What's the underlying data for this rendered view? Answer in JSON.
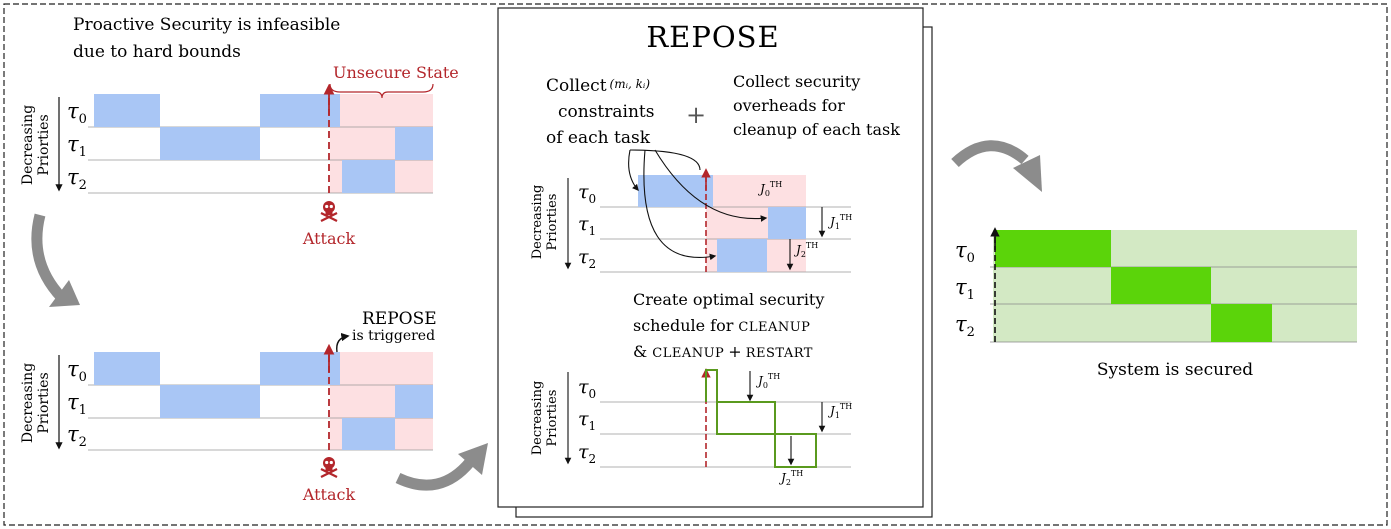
{
  "colors": {
    "task_block": "#a9c6f5",
    "unsecure_bg": "#fde0e2",
    "attack": "#b3262b",
    "schedule_line": "#5a9a1e",
    "secured_bg": "#d3e9c4",
    "secured_block": "#5bd40a",
    "arrow_gray": "#8c8c8c"
  },
  "icons": {
    "attack": "skull-crossbones-icon"
  },
  "tasks": {
    "t0": "τ",
    "t1": "τ",
    "t2": "τ",
    "s0": "0",
    "s1": "1",
    "s2": "2"
  },
  "axis_label_line1": "Decreasing",
  "axis_label_line2": "Priorties",
  "top_left": {
    "caption_line1": "Proactive Security is infeasible",
    "caption_line2": "due to hard bounds",
    "unsecure_label": "Unsecure State",
    "attack_label": "Attack"
  },
  "bottom_left": {
    "repose_label": "REPOSE",
    "triggered_label": "is triggered",
    "attack_label": "Attack"
  },
  "center": {
    "title": "REPOSE",
    "collect_line1": "Collect",
    "collect_param": "(mᵢ, kᵢ)",
    "collect_line2": "constraints",
    "collect_line3": "of each task",
    "plus": "+",
    "overhead_line1": "Collect security",
    "overhead_line2": "overheads for",
    "overhead_line3": "cleanup of each task",
    "schedule_line1": "Create optimal security",
    "schedule_line2_prefix": "schedule for",
    "schedule_line2_sc": "CLEANUP",
    "schedule_line3_prefix": "&",
    "schedule_line3_sc1": "CLEANUP",
    "schedule_line3_plus": "+",
    "schedule_line3_sc2": "RESTART",
    "j0": "J",
    "j1": "J",
    "j2": "J",
    "j_sub0": "0",
    "j_sub1": "1",
    "j_sub2": "2",
    "j_sup": "TH"
  },
  "right": {
    "caption": "System is secured"
  }
}
